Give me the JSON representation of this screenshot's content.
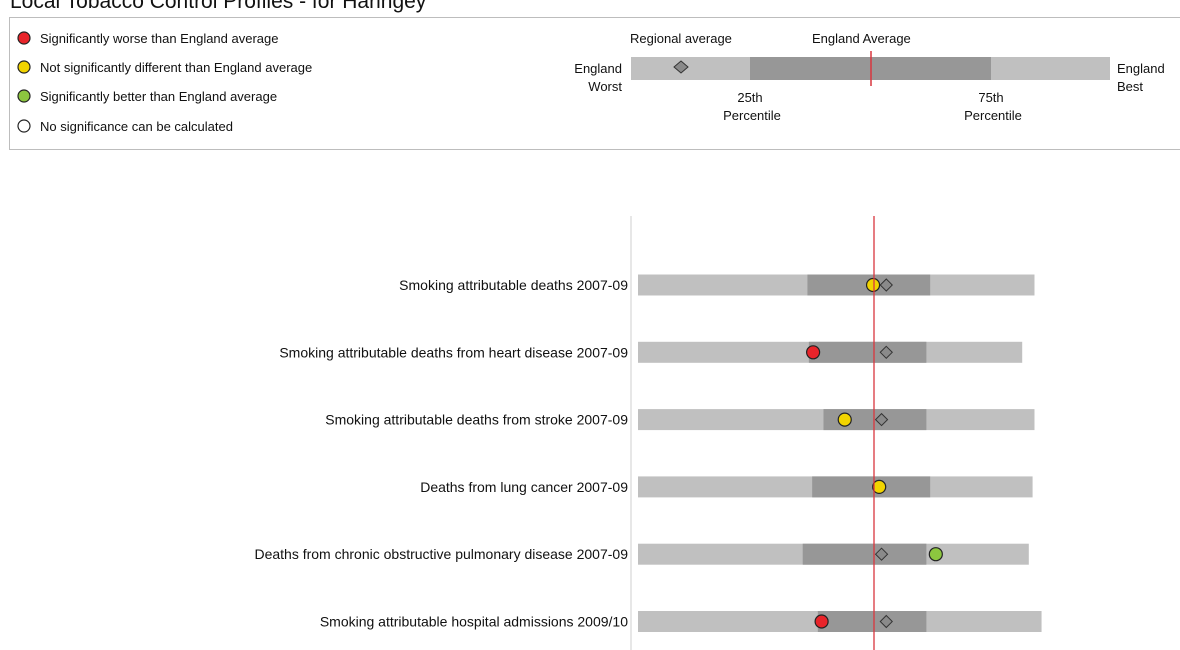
{
  "header": {
    "title": "Local Tobacco Control Profiles - for Haringey"
  },
  "legend": {
    "items": [
      {
        "label": "Significantly worse than England average",
        "color": "#e8242a"
      },
      {
        "label": "Not significantly different than England average",
        "color": "#f2d400"
      },
      {
        "label": "Significantly better than England average",
        "color": "#8cc63f"
      },
      {
        "label": "No significance can be calculated",
        "color": "#ffffff"
      }
    ],
    "scale": {
      "regional_label": "Regional average",
      "england_label": "England Average",
      "worst_label_1": "England",
      "worst_label_2": "Worst",
      "best_label_1": "England",
      "best_label_2": "Best",
      "p25_label_1": "25th",
      "p25_label_2": "Percentile",
      "p75_label_1": "75th",
      "p75_label_2": "Percentile"
    }
  },
  "colors": {
    "range_light": "#c0c0c0",
    "range_dark": "#979797",
    "england_line": "#d9363e",
    "regional_marker": "#8a8a8a"
  },
  "chart_data": {
    "type": "spine",
    "x_domain": [
      0,
      100
    ],
    "england_average": 50,
    "indicators": [
      {
        "label": "Smoking attributable deaths 2007-09",
        "worst": 0,
        "p25": 35.9,
        "p75": 61.9,
        "best": 84.0,
        "value": 49.8,
        "regional": 52.6,
        "significance": "not-different"
      },
      {
        "label": "Smoking attributable deaths from heart disease 2007-09",
        "worst": 0,
        "p25": 36.2,
        "p75": 61.1,
        "best": 81.4,
        "value": 37.1,
        "regional": 52.6,
        "significance": "worse"
      },
      {
        "label": "Smoking attributable deaths from stroke 2007-09",
        "worst": 0,
        "p25": 39.3,
        "p75": 61.1,
        "best": 84.0,
        "value": 43.8,
        "regional": 51.6,
        "significance": "not-different"
      },
      {
        "label": "Deaths from lung cancer 2007-09",
        "worst": 0,
        "p25": 36.9,
        "p75": 61.9,
        "best": 83.6,
        "value": 51.1,
        "regional": null,
        "significance": "not-different"
      },
      {
        "label": "Deaths from chronic obstructive pulmonary disease 2007-09",
        "worst": 0,
        "p25": 34.9,
        "p75": 61.1,
        "best": 82.8,
        "value": 63.1,
        "regional": 51.6,
        "significance": "better"
      },
      {
        "label": "Smoking attributable hospital admissions 2009/10",
        "worst": 0,
        "p25": 38.1,
        "p75": 61.1,
        "best": 85.5,
        "value": 38.9,
        "regional": 52.6,
        "significance": "worse"
      }
    ]
  }
}
